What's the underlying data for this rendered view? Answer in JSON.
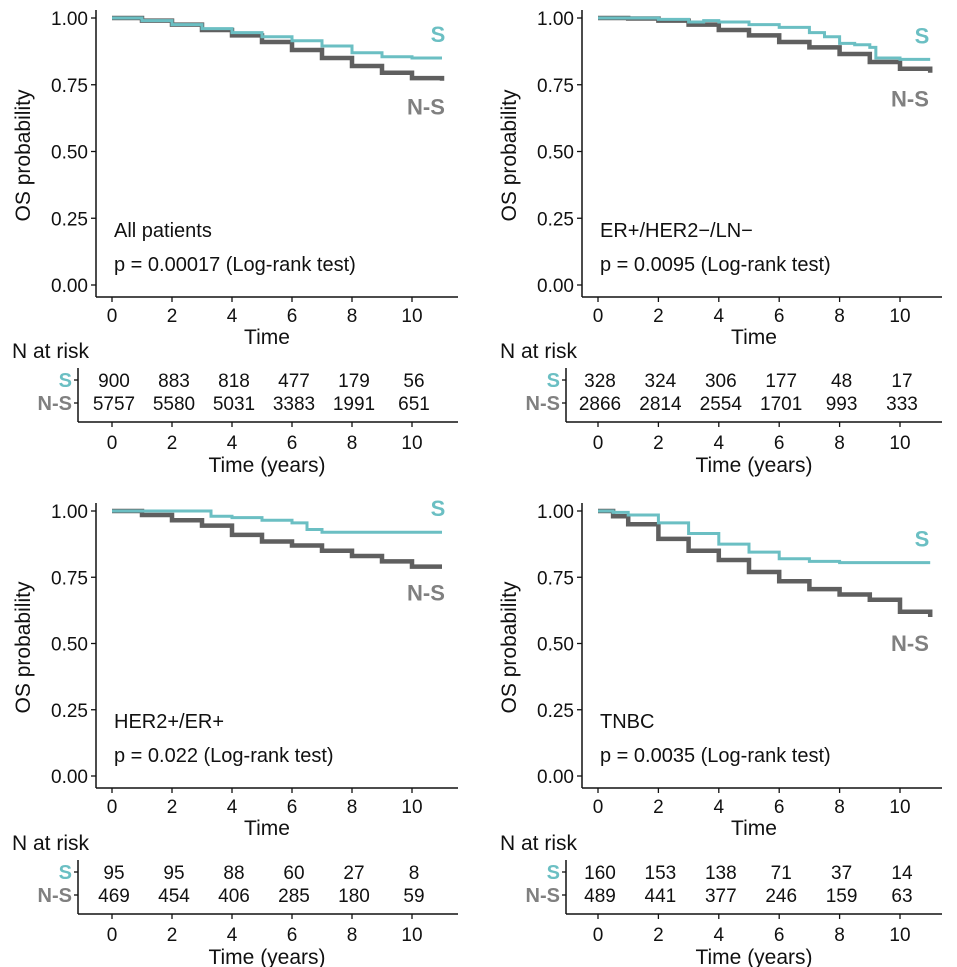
{
  "colors": {
    "S": "#6bbfc3",
    "NS": "#5f5f5f",
    "NS_label": "#808080"
  },
  "labels": {
    "y_axis": "OS probability",
    "x_axis": "Time",
    "risk_title": "N at risk",
    "risk_x_axis": "Time (years)",
    "group_S": "S",
    "group_NS": "N-S"
  },
  "chart_data": [
    {
      "type": "line",
      "title": "All patients",
      "pvalue": "p = 0.00017 (Log-rank test)",
      "ylabel": "OS probability",
      "xlabel": "Time",
      "ylim": [
        0,
        1
      ],
      "xlim": [
        0,
        11
      ],
      "y_ticks": [
        "0.00",
        "0.25",
        "0.50",
        "0.75",
        "1.00"
      ],
      "x_ticks": [
        "0",
        "2",
        "4",
        "6",
        "8",
        "10"
      ],
      "series": [
        {
          "name": "S",
          "x": [
            0,
            1,
            2,
            3,
            4,
            5,
            6,
            7,
            8,
            9,
            10,
            11
          ],
          "y": [
            1.0,
            0.99,
            0.975,
            0.96,
            0.945,
            0.93,
            0.915,
            0.895,
            0.87,
            0.855,
            0.85,
            0.85
          ]
        },
        {
          "name": "N-S",
          "x": [
            0,
            1,
            2,
            3,
            4,
            5,
            6,
            7,
            8,
            9,
            10,
            11
          ],
          "y": [
            1.0,
            0.99,
            0.975,
            0.955,
            0.935,
            0.91,
            0.88,
            0.85,
            0.82,
            0.795,
            0.775,
            0.765
          ]
        }
      ],
      "risk_table": {
        "title": "N at risk",
        "xlabel": "Time (years)",
        "S": [
          "900",
          "883",
          "818",
          "477",
          "179",
          "56"
        ],
        "N-S": [
          "5757",
          "5580",
          "5031",
          "3383",
          "1991",
          "651"
        ]
      }
    },
    {
      "type": "line",
      "title": "ER+/HER2−/LN−",
      "pvalue": "p = 0.0095 (Log-rank test)",
      "ylabel": "OS probability",
      "xlabel": "Time",
      "ylim": [
        0,
        1
      ],
      "xlim": [
        0,
        11
      ],
      "y_ticks": [
        "0.00",
        "0.25",
        "0.50",
        "0.75",
        "1.00"
      ],
      "x_ticks": [
        "0",
        "2",
        "4",
        "6",
        "8",
        "10"
      ],
      "series": [
        {
          "name": "S",
          "x": [
            0,
            1,
            2,
            3,
            3.5,
            4,
            5,
            6,
            7,
            7.5,
            8,
            8.5,
            9,
            9.2,
            10,
            11
          ],
          "y": [
            1.0,
            1.0,
            0.995,
            0.985,
            0.99,
            0.985,
            0.975,
            0.965,
            0.945,
            0.93,
            0.905,
            0.9,
            0.89,
            0.85,
            0.845,
            0.845
          ]
        },
        {
          "name": "N-S",
          "x": [
            0,
            1,
            2,
            3,
            4,
            5,
            6,
            7,
            8,
            9,
            10,
            11
          ],
          "y": [
            1.0,
            0.998,
            0.99,
            0.975,
            0.955,
            0.935,
            0.91,
            0.89,
            0.865,
            0.835,
            0.81,
            0.795
          ]
        }
      ],
      "risk_table": {
        "title": "N at risk",
        "xlabel": "Time (years)",
        "S": [
          "328",
          "324",
          "306",
          "177",
          "48",
          "17"
        ],
        "N-S": [
          "2866",
          "2814",
          "2554",
          "1701",
          "993",
          "333"
        ]
      }
    },
    {
      "type": "line",
      "title": "HER2+/ER+",
      "pvalue": "p = 0.022 (Log-rank test)",
      "ylabel": "OS probability",
      "xlabel": "Time",
      "ylim": [
        0,
        1
      ],
      "xlim": [
        0,
        11
      ],
      "y_ticks": [
        "0.00",
        "0.25",
        "0.50",
        "0.75",
        "1.00"
      ],
      "x_ticks": [
        "0",
        "2",
        "4",
        "6",
        "8",
        "10"
      ],
      "series": [
        {
          "name": "S",
          "x": [
            0,
            1,
            2,
            3,
            3.3,
            4,
            5,
            6,
            6.5,
            7,
            8,
            9,
            10,
            11
          ],
          "y": [
            1.0,
            1.0,
            1.0,
            1.0,
            0.98,
            0.975,
            0.965,
            0.955,
            0.93,
            0.92,
            0.92,
            0.92,
            0.92,
            0.92
          ]
        },
        {
          "name": "N-S",
          "x": [
            0,
            1,
            2,
            3,
            4,
            5,
            6,
            7,
            8,
            9,
            10,
            11
          ],
          "y": [
            1.0,
            0.985,
            0.965,
            0.945,
            0.91,
            0.885,
            0.87,
            0.85,
            0.83,
            0.81,
            0.79,
            0.79
          ]
        }
      ],
      "risk_table": {
        "title": "N at risk",
        "xlabel": "Time (years)",
        "S": [
          "95",
          "95",
          "88",
          "60",
          "27",
          "8"
        ],
        "N-S": [
          "469",
          "454",
          "406",
          "285",
          "180",
          "59"
        ]
      }
    },
    {
      "type": "line",
      "title": "TNBC",
      "pvalue": "p = 0.0035 (Log-rank test)",
      "ylabel": "OS probability",
      "xlabel": "Time",
      "ylim": [
        0,
        1
      ],
      "xlim": [
        0,
        11
      ],
      "y_ticks": [
        "0.00",
        "0.25",
        "0.50",
        "0.75",
        "1.00"
      ],
      "x_ticks": [
        "0",
        "2",
        "4",
        "6",
        "8",
        "10"
      ],
      "series": [
        {
          "name": "S",
          "x": [
            0,
            0.5,
            1,
            2,
            3,
            4,
            5,
            6,
            7,
            8,
            9,
            10,
            11
          ],
          "y": [
            1.0,
            0.995,
            0.985,
            0.955,
            0.915,
            0.875,
            0.845,
            0.82,
            0.81,
            0.805,
            0.805,
            0.805,
            0.805
          ]
        },
        {
          "name": "N-S",
          "x": [
            0,
            0.5,
            1,
            2,
            3,
            4,
            5,
            6,
            7,
            8,
            9,
            10,
            11
          ],
          "y": [
            1.0,
            0.98,
            0.95,
            0.895,
            0.85,
            0.815,
            0.77,
            0.735,
            0.705,
            0.685,
            0.665,
            0.62,
            0.6
          ]
        }
      ],
      "risk_table": {
        "title": "N at risk",
        "xlabel": "Time (years)",
        "S": [
          "160",
          "153",
          "138",
          "71",
          "37",
          "14"
        ],
        "N-S": [
          "489",
          "441",
          "377",
          "246",
          "159",
          "63"
        ]
      }
    }
  ]
}
